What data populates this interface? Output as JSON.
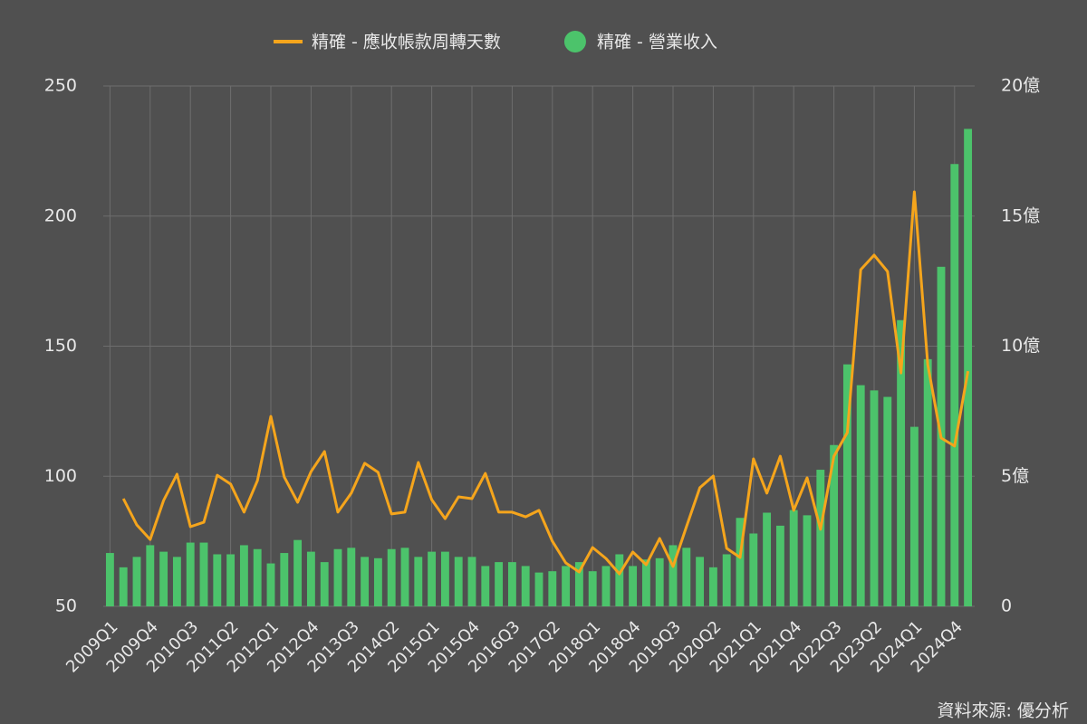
{
  "chart_data": {
    "type": "bar-line",
    "categories": [
      "2009Q1",
      null,
      null,
      "2009Q4",
      null,
      null,
      "2010Q3",
      null,
      null,
      "2011Q2",
      null,
      null,
      "2012Q1",
      null,
      null,
      "2012Q4",
      null,
      null,
      "2013Q3",
      null,
      null,
      "2014Q2",
      null,
      null,
      "2015Q1",
      null,
      null,
      "2015Q4",
      null,
      null,
      "2016Q3",
      null,
      null,
      "2017Q2",
      null,
      null,
      "2018Q1",
      null,
      null,
      "2018Q4",
      null,
      null,
      "2019Q3",
      null,
      null,
      "2020Q2",
      null,
      null,
      "2021Q1",
      null,
      null,
      "2021Q4",
      null,
      null,
      "2022Q3",
      null,
      null,
      "2023Q2",
      null,
      null,
      "2024Q1",
      null,
      null,
      "2024Q4",
      null
    ],
    "series": [
      {
        "name": "精確 - 應收帳款周轉天數",
        "color": "#f5a51c",
        "kind": "line",
        "axis": "y",
        "values": [
          null,
          91.4,
          81.3,
          75.7,
          90.7,
          100.8,
          80.6,
          82.3,
          100.4,
          97.0,
          86.2,
          98.3,
          123.0,
          99.7,
          90.0,
          101.8,
          109.5,
          86.2,
          93.5,
          105.0,
          101.5,
          85.5,
          86.2,
          105.3,
          91.0,
          83.7,
          92.1,
          91.4,
          101.1,
          86.2,
          86.2,
          84.4,
          86.9,
          75.0,
          66.7,
          63.2,
          72.6,
          68.4,
          62.5,
          70.9,
          66.0,
          76.1,
          65.3,
          80.6,
          95.6,
          100.1,
          72.3,
          68.8,
          106.7,
          93.5,
          107.7,
          86.9,
          99.4,
          79.6,
          107.7,
          116.8,
          179.4,
          185.0,
          178.7,
          139.7,
          209.3,
          142.9,
          114.7,
          111.6,
          140.4
        ]
      },
      {
        "name": "精確 - 營業收入",
        "color": "#4cc36b",
        "kind": "bar",
        "axis": "y2",
        "values": [
          2.05,
          1.5,
          1.9,
          2.35,
          2.1,
          1.9,
          2.45,
          2.45,
          2.0,
          2.0,
          2.35,
          2.2,
          1.65,
          2.05,
          2.55,
          2.1,
          1.7,
          2.2,
          2.25,
          1.9,
          1.85,
          2.2,
          2.25,
          1.9,
          2.1,
          2.1,
          1.9,
          1.9,
          1.55,
          1.7,
          1.7,
          1.55,
          1.3,
          1.35,
          1.55,
          1.7,
          1.35,
          1.55,
          2.0,
          1.55,
          1.8,
          1.85,
          2.35,
          2.25,
          1.9,
          1.5,
          2.0,
          3.4,
          2.8,
          3.6,
          3.1,
          3.7,
          3.5,
          5.25,
          6.2,
          9.3,
          8.5,
          8.3,
          8.05,
          11.0,
          6.9,
          9.5,
          13.05,
          17.0,
          18.35
        ]
      }
    ],
    "ylim": [
      50,
      250
    ],
    "yticks": [
      50,
      100,
      150,
      200,
      250
    ],
    "y2lim": [
      0,
      20
    ],
    "y2ticks": [
      0,
      {
        "value": 5,
        "label": "5億"
      },
      {
        "value": 10,
        "label": "10億"
      },
      {
        "value": 15,
        "label": "15億"
      },
      {
        "value": 20,
        "label": "20億"
      }
    ],
    "grid": true,
    "legend": "top",
    "source": "資料來源: 優分析"
  }
}
